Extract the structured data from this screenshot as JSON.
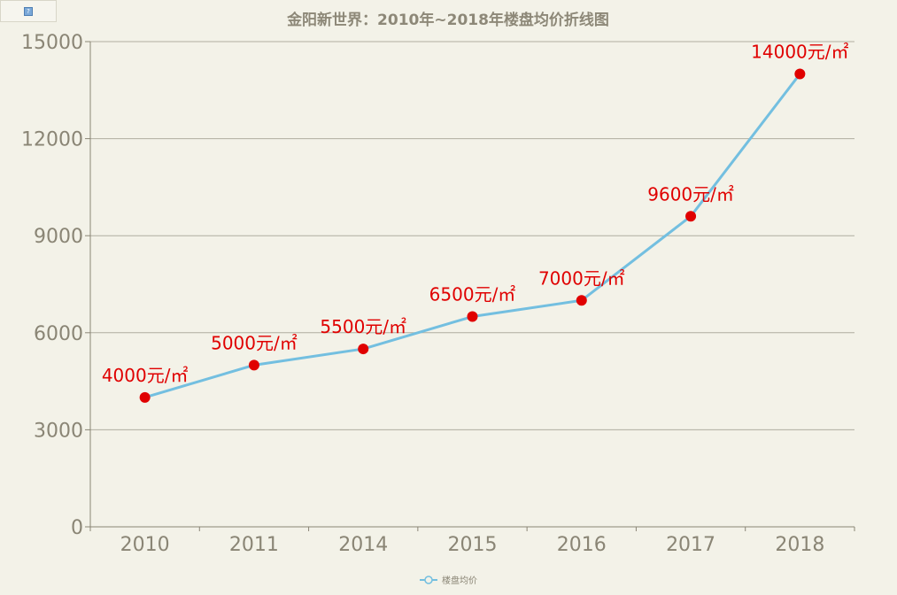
{
  "chart_data": {
    "type": "line",
    "title": "金阳新世界：2010年~2018年楼盘均价折线图",
    "categories": [
      "2010",
      "2011",
      "2014",
      "2015",
      "2016",
      "2017",
      "2018"
    ],
    "series": [
      {
        "name": "楼盘均价",
        "values": [
          4000,
          5000,
          5500,
          6500,
          7000,
          9600,
          14000
        ],
        "labels": [
          "4000元/㎡",
          "5000元/㎡",
          "5500元/㎡",
          "6500元/㎡",
          "7000元/㎡",
          "9600元/㎡",
          "14000元/㎡"
        ]
      }
    ],
    "yticks": [
      "0",
      "3000",
      "6000",
      "9000",
      "12000",
      "15000"
    ],
    "ylim": [
      0,
      15000
    ],
    "xlabel": "",
    "ylabel": "",
    "grid": true,
    "legend_position": "bottom-center"
  },
  "colors": {
    "background": "#f3f2e8",
    "line": "#73bfe0",
    "marker": "#e00000",
    "label": "#e00000",
    "grid": "#b0ada0",
    "axis": "#8a8575"
  },
  "icons": {
    "corner": "help-icon"
  }
}
